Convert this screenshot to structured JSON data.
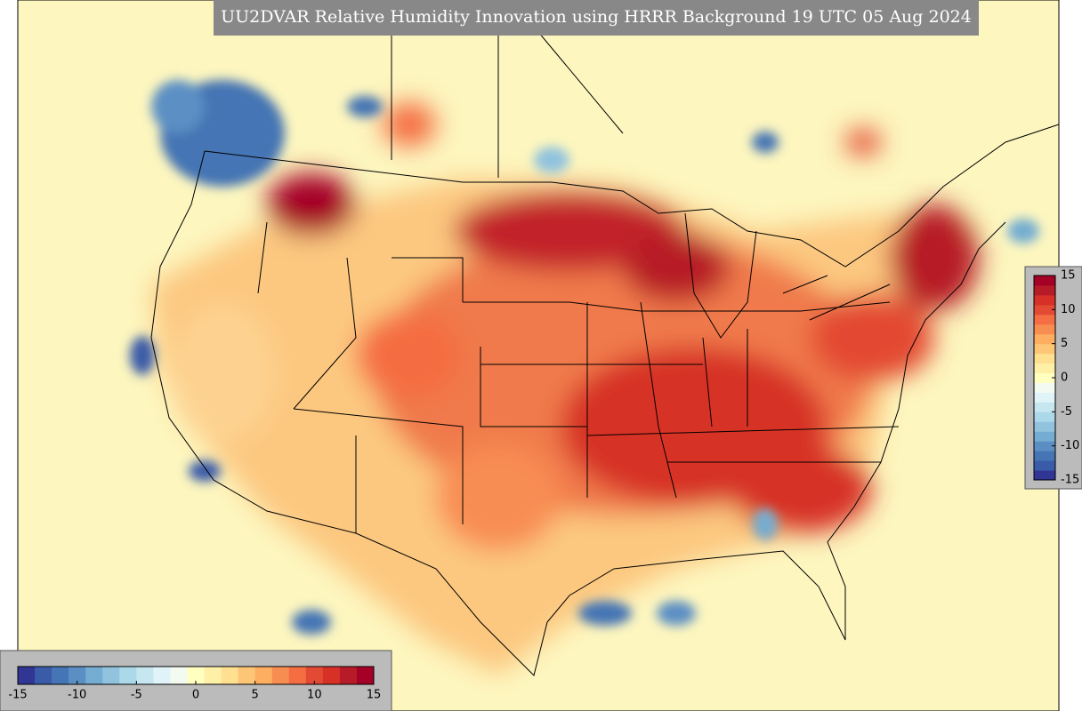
{
  "title": "UU2DVAR Relative Humidity Innovation using HRRR Background 19 UTC 05 Aug 2024",
  "colorbar": {
    "range": [
      -15,
      15
    ],
    "ticks": [
      -15,
      -10,
      -5,
      0,
      5,
      10,
      15
    ],
    "colors": [
      "#313695",
      "#3a5ba8",
      "#4575b4",
      "#5b8fc4",
      "#74add1",
      "#91c3de",
      "#abd9e9",
      "#c6e6f0",
      "#e0f3f8",
      "#f3faf0",
      "#ffffbf",
      "#fff0a8",
      "#fee090",
      "#fdc576",
      "#fdae61",
      "#f88d52",
      "#f46d43",
      "#e34a33",
      "#d73027",
      "#b71b27",
      "#a50026"
    ]
  }
}
